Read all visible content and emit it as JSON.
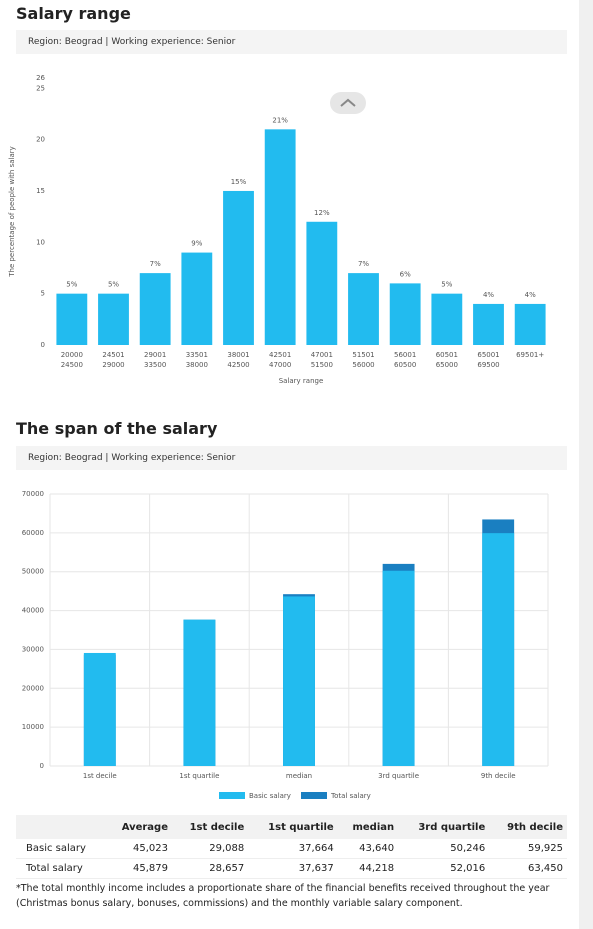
{
  "chart_data": [
    {
      "type": "bar",
      "title": "Salary range",
      "subtitle": "Region: Beograd | Working experience: Senior",
      "y_label": "The percentage of people with salary",
      "x_label": "Salary range",
      "categories": [
        [
          "20000",
          "24500"
        ],
        [
          "24501",
          "29000"
        ],
        [
          "29001",
          "33500"
        ],
        [
          "33501",
          "38000"
        ],
        [
          "38001",
          "42500"
        ],
        [
          "42501",
          "47000"
        ],
        [
          "47001",
          "51500"
        ],
        [
          "51501",
          "56000"
        ],
        [
          "56001",
          "60500"
        ],
        [
          "60501",
          "65000"
        ],
        [
          "65001",
          "69500"
        ],
        [
          "69501+"
        ]
      ],
      "values": [
        5,
        5,
        7,
        9,
        15,
        21,
        12,
        7,
        6,
        5,
        4,
        4
      ],
      "value_labels": [
        "5%",
        "5%",
        "7%",
        "9%",
        "15%",
        "21%",
        "12%",
        "7%",
        "6%",
        "5%",
        "4%",
        "4%"
      ],
      "color": "#22bbef",
      "ylim": [
        0,
        26
      ],
      "yticks": [
        0,
        5,
        10,
        15,
        20,
        25,
        26
      ],
      "grid": false
    },
    {
      "type": "bar",
      "title": "The span of the salary",
      "subtitle": "Region: Beograd | Working experience: Senior",
      "barmode": "overlay",
      "categories": [
        "1st decile",
        "1st quartile",
        "median",
        "3rd quartile",
        "9th decile"
      ],
      "series": [
        {
          "name": "Basic salary",
          "color": "#22bbef",
          "values": [
            29088,
            37664,
            43640,
            50246,
            59925
          ]
        },
        {
          "name": "Total salary",
          "color": "#1a7fc1",
          "values": [
            28657,
            37637,
            44218,
            52016,
            63450
          ]
        }
      ],
      "ylim": [
        0,
        70000
      ],
      "yticks": [
        0,
        10000,
        20000,
        30000,
        40000,
        50000,
        60000,
        70000
      ],
      "grid": true,
      "legend": "bottom"
    }
  ],
  "table": {
    "header": [
      "Average",
      "1st decile",
      "1st quartile",
      "median",
      "3rd quartile",
      "9th decile"
    ],
    "rows": [
      [
        "Basic salary",
        "45,023",
        "29,088",
        "37,664",
        "43,640",
        "50,246",
        "59,925"
      ],
      [
        "Total salary",
        "45,879",
        "28,657",
        "37,637",
        "44,218",
        "52,016",
        "63,450"
      ]
    ]
  },
  "footnote": "*The total monthly income includes a proportionate share of the financial benefits received throughout the year (Christmas bonus salary, bonuses, commissions) and the monthly variable salary component."
}
